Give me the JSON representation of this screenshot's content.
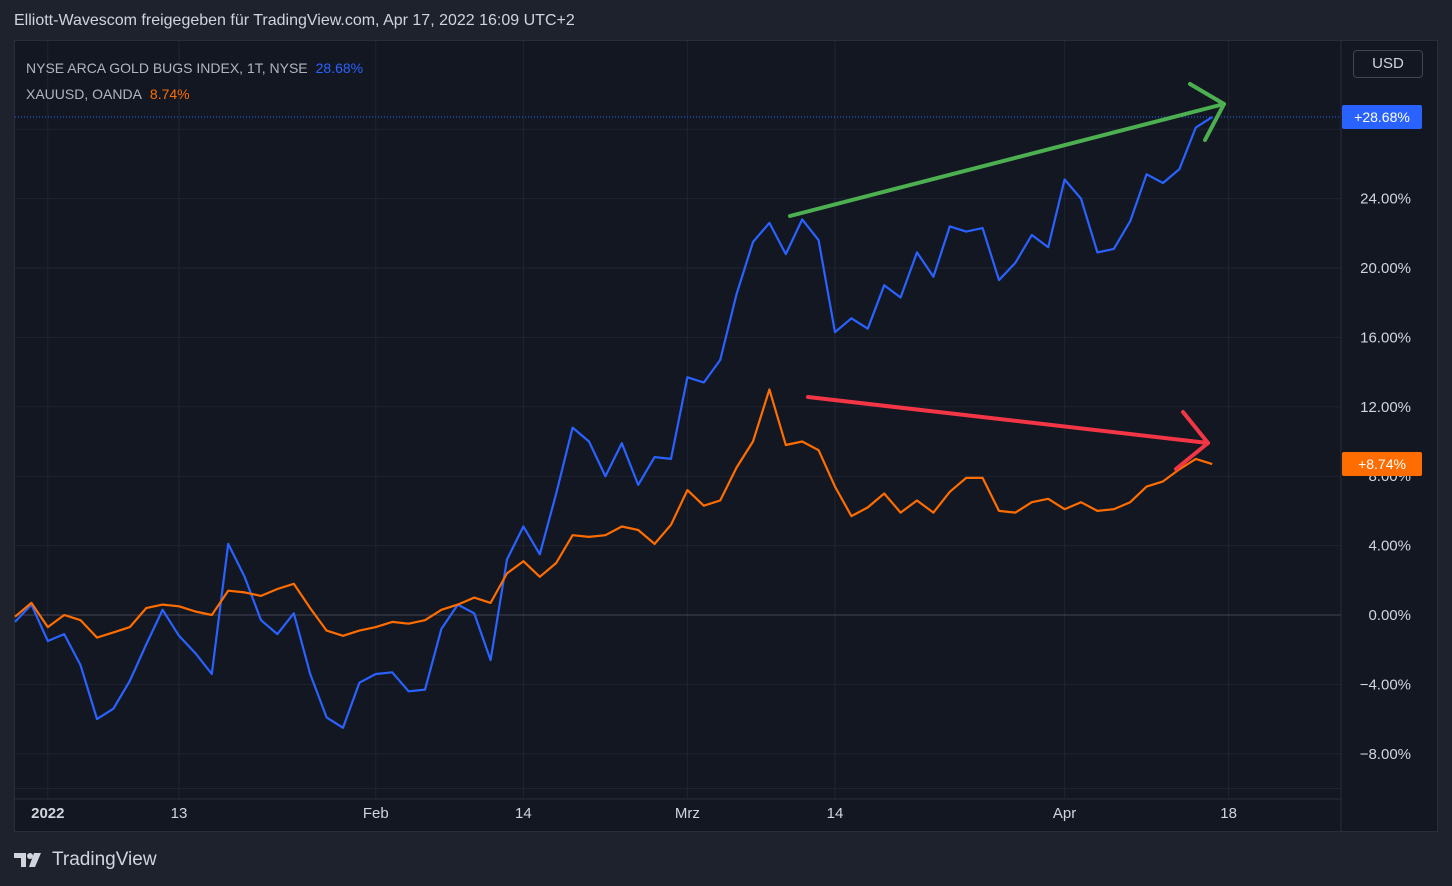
{
  "header": {
    "title": "Elliott-Wavescom freigegeben für TradingView.com, Apr 17, 2022 16:09 UTC+2"
  },
  "legend": {
    "series1_label": "NYSE ARCA GOLD BUGS INDEX, 1T, NYSE",
    "series1_value": "28.68%",
    "series2_label": "XAUUSD, OANDA",
    "series2_value": "8.74%"
  },
  "controls": {
    "currency": "USD"
  },
  "footer": {
    "brand": "TradingView"
  },
  "colors": {
    "background": "#131722",
    "grid": "#1f2430",
    "series_blue": "#2962ff",
    "series_orange": "#ff6d00",
    "arrow_green": "#4caf50",
    "arrow_red": "#f23645",
    "axis_text": "#d1d4dc"
  },
  "chart_data": {
    "type": "line",
    "ylim": [
      -10,
      30
    ],
    "y_ticks": [
      -8,
      -4,
      0,
      4,
      8,
      12,
      16,
      20,
      24
    ],
    "y_tick_labels": [
      "−8.00%",
      "−4.00%",
      "0.00%",
      "4.00%",
      "8.00%",
      "12.00%",
      "16.00%",
      "20.00%",
      "24.00%"
    ],
    "x_count": 74,
    "x_ticks": [
      {
        "index": 2,
        "label": "2022",
        "bold": true
      },
      {
        "index": 10,
        "label": "13"
      },
      {
        "index": 22,
        "label": "Feb"
      },
      {
        "index": 31,
        "label": "14"
      },
      {
        "index": 41,
        "label": "Mrz"
      },
      {
        "index": 50,
        "label": "14"
      },
      {
        "index": 64,
        "label": "Apr"
      },
      {
        "index": 74,
        "label": "18"
      }
    ],
    "series": [
      {
        "name": "NYSE ARCA GOLD BUGS INDEX, 1T, NYSE",
        "color": "#2962ff",
        "last_label": "+28.68%",
        "values": [
          -0.4,
          0.6,
          -1.5,
          -1.1,
          -2.9,
          -6.0,
          -5.4,
          -3.8,
          -1.7,
          0.3,
          -1.2,
          -2.2,
          -3.4,
          4.1,
          2.2,
          -0.3,
          -1.1,
          0.1,
          -3.4,
          -5.9,
          -6.5,
          -3.9,
          -3.4,
          -3.3,
          -4.4,
          -4.3,
          -0.8,
          0.6,
          0.1,
          -2.6,
          3.2,
          5.1,
          3.5,
          7.0,
          10.8,
          10.0,
          8.0,
          9.9,
          7.5,
          9.1,
          9.0,
          13.7,
          13.4,
          14.7,
          18.5,
          21.5,
          22.6,
          20.8,
          22.8,
          21.6,
          16.3,
          17.1,
          16.5,
          19.0,
          18.3,
          20.9,
          19.5,
          22.4,
          22.1,
          22.3,
          19.3,
          20.3,
          21.9,
          21.2,
          25.1,
          24.0,
          20.9,
          21.1,
          22.7,
          25.4,
          24.9,
          25.7,
          28.1,
          28.7
        ]
      },
      {
        "name": "XAUUSD, OANDA",
        "color": "#ff6d00",
        "last_label": "+8.74%",
        "values": [
          -0.1,
          0.7,
          -0.7,
          0.0,
          -0.3,
          -1.3,
          -1.0,
          -0.7,
          0.4,
          0.6,
          0.5,
          0.2,
          0.0,
          1.4,
          1.3,
          1.1,
          1.5,
          1.8,
          0.4,
          -0.9,
          -1.2,
          -0.9,
          -0.7,
          -0.4,
          -0.5,
          -0.3,
          0.3,
          0.6,
          1.0,
          0.7,
          2.4,
          3.1,
          2.2,
          3.0,
          4.6,
          4.5,
          4.6,
          5.1,
          4.9,
          4.1,
          5.2,
          7.2,
          6.3,
          6.6,
          8.5,
          10.0,
          13.0,
          9.8,
          10.0,
          9.5,
          7.4,
          5.7,
          6.2,
          7.0,
          5.9,
          6.6,
          5.9,
          7.1,
          7.9,
          7.9,
          6.0,
          5.9,
          6.5,
          6.7,
          6.1,
          6.5,
          6.0,
          6.1,
          6.5,
          7.4,
          7.7,
          8.4,
          9.0,
          8.7
        ]
      }
    ]
  }
}
